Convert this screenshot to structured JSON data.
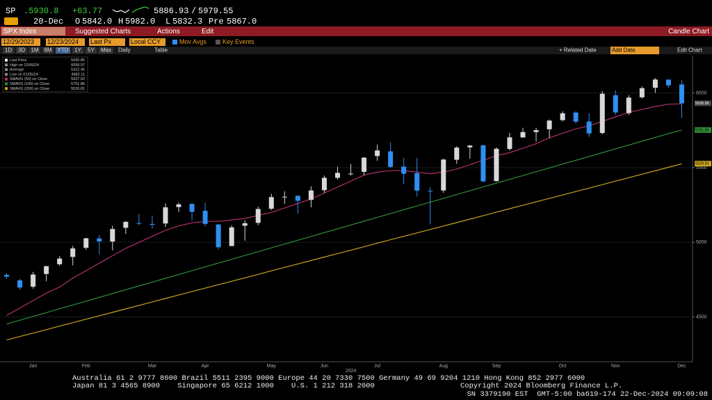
{
  "header": {
    "ticker": "SP",
    "last": ".5930.8",
    "change": "+63.77",
    "bid": "5886.93",
    "ask": "5979.55",
    "date": "20-Dec",
    "open_label": "O",
    "open": "5842.0",
    "high_label": "H",
    "high": "5982.0",
    "low_label": "L",
    "low": "5832.3",
    "pre_label": "Pre",
    "pre": "5867.0"
  },
  "menu": {
    "security": "SPX Index",
    "suggested": "Suggested Charts",
    "actions": "Actions",
    "edit": "Edit",
    "chart_kind": "Candle Chart"
  },
  "toolbar": {
    "start": "12/29/2023",
    "end": "12/23/2024",
    "field": "Last Px",
    "currency": "Local CCY",
    "mov_avgs": "Mov Avgs",
    "key_events": "Key Events"
  },
  "periods": {
    "buttons": [
      "1D",
      "3D",
      "1M",
      "6M",
      "YTD",
      "1Y",
      "5Y",
      "Max"
    ],
    "frequency": "Daily",
    "table": "Table",
    "related": "+ Related Date",
    "add_data": "Add Data",
    "edit_chart": "Edit Chart"
  },
  "chart_data": {
    "type": "candlestick",
    "categories": [
      null,
      null,
      "Jan",
      null,
      null,
      null,
      "Feb",
      null,
      null,
      null,
      null,
      "Mar",
      null,
      null,
      null,
      "Apr",
      null,
      null,
      null,
      null,
      "May",
      null,
      null,
      null,
      "Jun",
      null,
      null,
      null,
      "Jul",
      null,
      null,
      null,
      null,
      "Aug",
      null,
      null,
      null,
      "Sep",
      null,
      null,
      null,
      null,
      "Oct",
      null,
      null,
      null,
      "Nov",
      null,
      null,
      null,
      null,
      "Dec"
    ],
    "year_label": "2024",
    "open": [
      4782,
      4745,
      4703,
      4788,
      4853,
      4902,
      4963,
      5026,
      5005,
      5097,
      5129,
      5123,
      5126,
      5236,
      5257,
      5211,
      5119,
      4975,
      5111,
      5130,
      5225,
      5305,
      5311,
      5284,
      5349,
      5432,
      5459,
      5472,
      5578,
      5609,
      5507,
      5463,
      5345,
      5347,
      5553,
      5636,
      5650,
      5410,
      5625,
      5702,
      5738,
      5757,
      5818,
      5869,
      5809,
      5732,
      5985,
      5865,
      5971,
      6035,
      6090,
      6057
    ],
    "high": [
      4793,
      4755,
      4802,
      4842,
      4907,
      4976,
      5030,
      5048,
      5111,
      5141,
      5190,
      5179,
      5261,
      5265,
      5264,
      5263,
      5123,
      5114,
      5147,
      5239,
      5325,
      5342,
      5315,
      5375,
      5447,
      5506,
      5524,
      5571,
      5655,
      5670,
      5566,
      5566,
      5370,
      5561,
      5643,
      5651,
      5651,
      5636,
      5733,
      5767,
      5767,
      5822,
      5878,
      5878,
      5865,
      6013,
      6018,
      5985,
      6044,
      6100,
      6089,
      6085
    ],
    "low": [
      4754,
      4682,
      4689,
      4740,
      4842,
      4845,
      4950,
      4920,
      4946,
      5056,
      5114,
      5092,
      5103,
      5203,
      5146,
      5107,
      4953,
      4984,
      5011,
      5114,
      5215,
      5257,
      5191,
      5234,
      5331,
      5420,
      5447,
      5448,
      5546,
      5497,
      5391,
      5306,
      5119,
      5330,
      5525,
      5560,
      5402,
      5406,
      5614,
      5702,
      5674,
      5696,
      5810,
      5794,
      5706,
      5723,
      5853,
      5853,
      5963,
      6001,
      6035,
      5832
    ],
    "close": [
      4770,
      4697,
      4784,
      4840,
      4891,
      4959,
      5027,
      5006,
      5089,
      5137,
      5124,
      5117,
      5234,
      5254,
      5204,
      5123,
      4967,
      5100,
      5128,
      5223,
      5303,
      5305,
      5278,
      5347,
      5432,
      5465,
      5460,
      5567,
      5615,
      5505,
      5459,
      5346,
      5344,
      5554,
      5634,
      5648,
      5408,
      5626,
      5703,
      5738,
      5751,
      5815,
      5864,
      5808,
      5729,
      5995,
      5870,
      5969,
      6032,
      6090,
      6051,
      5930.85
    ],
    "up_color": "#d8d8d8",
    "down_color": "#2f8ff0",
    "series": [
      {
        "name": "SMAVG (50) on Close",
        "color": "#b0306e",
        "values": [
          4510,
          4560,
          4610,
          4660,
          4700,
          4760,
          4810,
          4860,
          4910,
          4960,
          5000,
          5040,
          5080,
          5110,
          5130,
          5140,
          5140,
          5150,
          5160,
          5180,
          5200,
          5230,
          5260,
          5290,
          5330,
          5370,
          5410,
          5450,
          5470,
          5480,
          5480,
          5470,
          5460,
          5470,
          5490,
          5520,
          5550,
          5580,
          5600,
          5630,
          5660,
          5700,
          5730,
          5760,
          5780,
          5810,
          5840,
          5870,
          5890,
          5910,
          5925,
          5927
        ]
      },
      {
        "name": "SMAVG (100) on Close",
        "color": "#2f8f3a",
        "values": [
          4453,
          4478,
          4504,
          4529,
          4555,
          4580,
          4606,
          4631,
          4657,
          4682,
          4708,
          4733,
          4759,
          4784,
          4810,
          4835,
          4861,
          4886,
          4912,
          4937,
          4963,
          4988,
          5014,
          5039,
          5065,
          5090,
          5116,
          5141,
          5167,
          5192,
          5218,
          5243,
          5269,
          5294,
          5320,
          5345,
          5371,
          5396,
          5422,
          5447,
          5473,
          5498,
          5524,
          5549,
          5575,
          5600,
          5626,
          5651,
          5677,
          5702,
          5728,
          5751
        ]
      },
      {
        "name": "SMAVG (200) on Close",
        "color": "#c9a320",
        "values": [
          4346,
          4369,
          4392,
          4415,
          4439,
          4462,
          4485,
          4508,
          4531,
          4554,
          4577,
          4600,
          4624,
          4647,
          4670,
          4693,
          4716,
          4739,
          4762,
          4785,
          4809,
          4832,
          4855,
          4878,
          4901,
          4924,
          4947,
          4970,
          4994,
          5017,
          5040,
          5063,
          5086,
          5109,
          5132,
          5155,
          5178,
          5202,
          5225,
          5248,
          5271,
          5294,
          5317,
          5340,
          5363,
          5386,
          5410,
          5433,
          5456,
          5479,
          5502,
          5526
        ]
      }
    ],
    "legend": [
      {
        "label": "Last Price",
        "value": 5930.85,
        "color": "#ffffff"
      },
      {
        "label": "High on 12/06/24",
        "value": 6099.97,
        "color": "#888888"
      },
      {
        "label": "Average",
        "value": 5412.45,
        "color": "#888888"
      },
      {
        "label": "Low on 01/05/24",
        "value": 4682.11,
        "color": "#888888"
      },
      {
        "label": "SMAVG (50) on Close",
        "value": 5927.02,
        "color": "#b0306e"
      },
      {
        "label": "SMAVG (100) on Close",
        "value": 5751.86,
        "color": "#2f8f3a"
      },
      {
        "label": "SMAVG (200) on Close",
        "value": 5526.81,
        "color": "#c9a320"
      }
    ],
    "ylim": [
      4200,
      6250
    ],
    "yticks": [
      4500,
      5000,
      5500,
      6000
    ],
    "grid": true
  },
  "footer": {
    "line1": "Australia 61 2 9777 8600 Brazil 5511 2395 9000 Europe 44 20 7330 7500 Germany 49 69 9204 1210 Hong Kong 852 2977 6000",
    "line2": "Japan 81 3 4565 8900    Singapore 65 6212 1000    U.S. 1 212 318 2000",
    "copyright": "Copyright 2024 Bloomberg Finance L.P.",
    "line3": "SN 3379190 EST  GMT-5:00 ba619-174 22-Dec-2024 09:09:08"
  }
}
